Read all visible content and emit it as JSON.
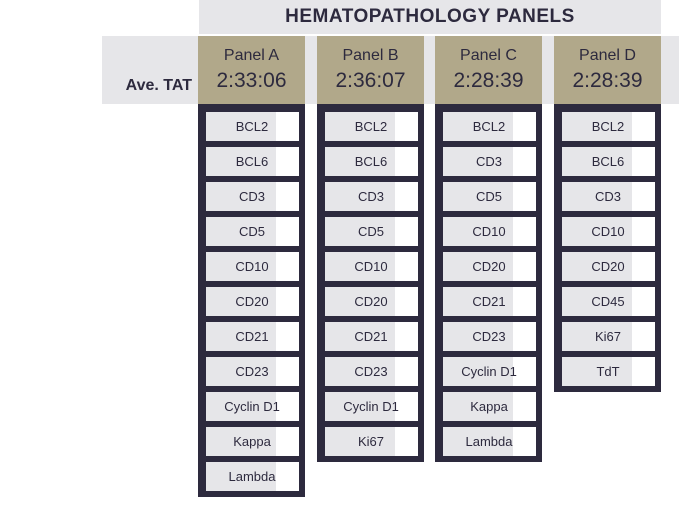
{
  "title": "HEMATOPATHOLOGY PANELS",
  "tat_label": "Ave. TAT",
  "panels": [
    {
      "name": "Panel A",
      "tat": "2:33:06",
      "markers": [
        "BCL2",
        "BCL6",
        "CD3",
        "CD5",
        "CD10",
        "CD20",
        "CD21",
        "CD23",
        "Cyclin D1",
        "Kappa",
        "Lambda"
      ]
    },
    {
      "name": "Panel B",
      "tat": "2:36:07",
      "markers": [
        "BCL2",
        "BCL6",
        "CD3",
        "CD5",
        "CD10",
        "CD20",
        "CD21",
        "CD23",
        "Cyclin D1",
        "Ki67"
      ]
    },
    {
      "name": "Panel C",
      "tat": "2:28:39",
      "markers": [
        "BCL2",
        "CD3",
        "CD5",
        "CD10",
        "CD20",
        "CD21",
        "CD23",
        "Cyclin D1",
        "Kappa",
        "Lambda"
      ]
    },
    {
      "name": "Panel D",
      "tat": "2:28:39",
      "markers": [
        "BCL2",
        "BCL6",
        "CD3",
        "CD10",
        "CD20",
        "CD45",
        "Ki67",
        "TdT"
      ]
    }
  ],
  "colors": {
    "navy": "#2d2a3e",
    "khaki": "#b1a88a",
    "light_gray": "#e6e6e9"
  }
}
